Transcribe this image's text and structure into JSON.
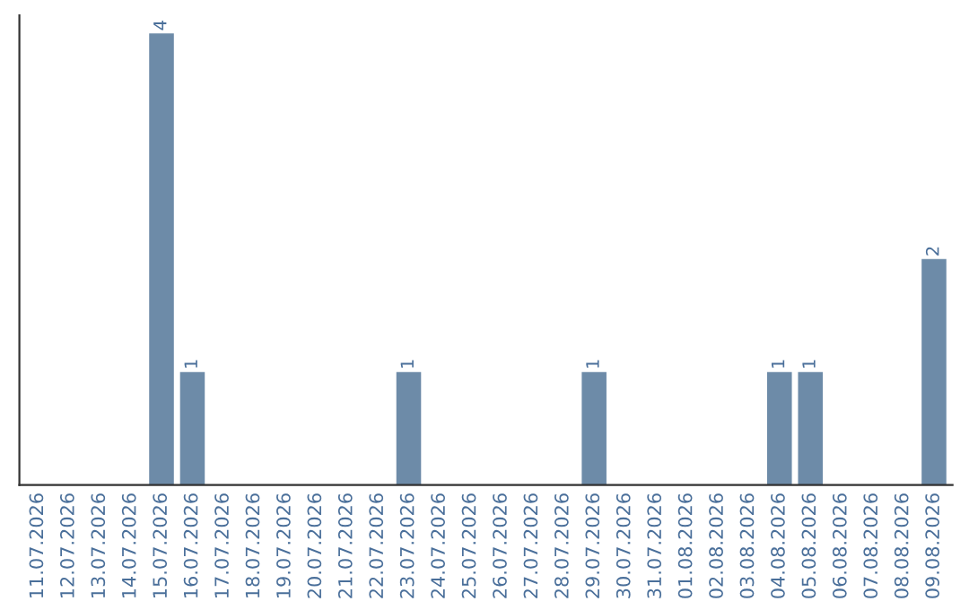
{
  "chart_data": {
    "type": "bar",
    "categories": [
      "11.07.2026",
      "12.07.2026",
      "13.07.2026",
      "14.07.2026",
      "15.07.2026",
      "16.07.2026",
      "17.07.2026",
      "18.07.2026",
      "19.07.2026",
      "20.07.2026",
      "21.07.2026",
      "22.07.2026",
      "23.07.2026",
      "24.07.2026",
      "25.07.2026",
      "26.07.2026",
      "27.07.2026",
      "28.07.2026",
      "29.07.2026",
      "30.07.2026",
      "31.07.2026",
      "01.08.2026",
      "02.08.2026",
      "03.08.2026",
      "04.08.2026",
      "05.08.2026",
      "06.08.2026",
      "07.08.2026",
      "08.08.2026",
      "09.08.2026"
    ],
    "values": [
      0,
      0,
      0,
      0,
      4,
      1,
      0,
      0,
      0,
      0,
      0,
      0,
      1,
      0,
      0,
      0,
      0,
      0,
      1,
      0,
      0,
      0,
      0,
      0,
      1,
      1,
      0,
      0,
      0,
      2
    ],
    "value_labels": [
      null,
      null,
      null,
      null,
      "4",
      "1",
      null,
      null,
      null,
      null,
      null,
      null,
      "1",
      null,
      null,
      null,
      null,
      null,
      "1",
      null,
      null,
      null,
      null,
      null,
      "1",
      "1",
      null,
      null,
      null,
      "2"
    ],
    "color": "#6d8ba8",
    "tick_labels": "x",
    "grid": false,
    "legend": false
  }
}
